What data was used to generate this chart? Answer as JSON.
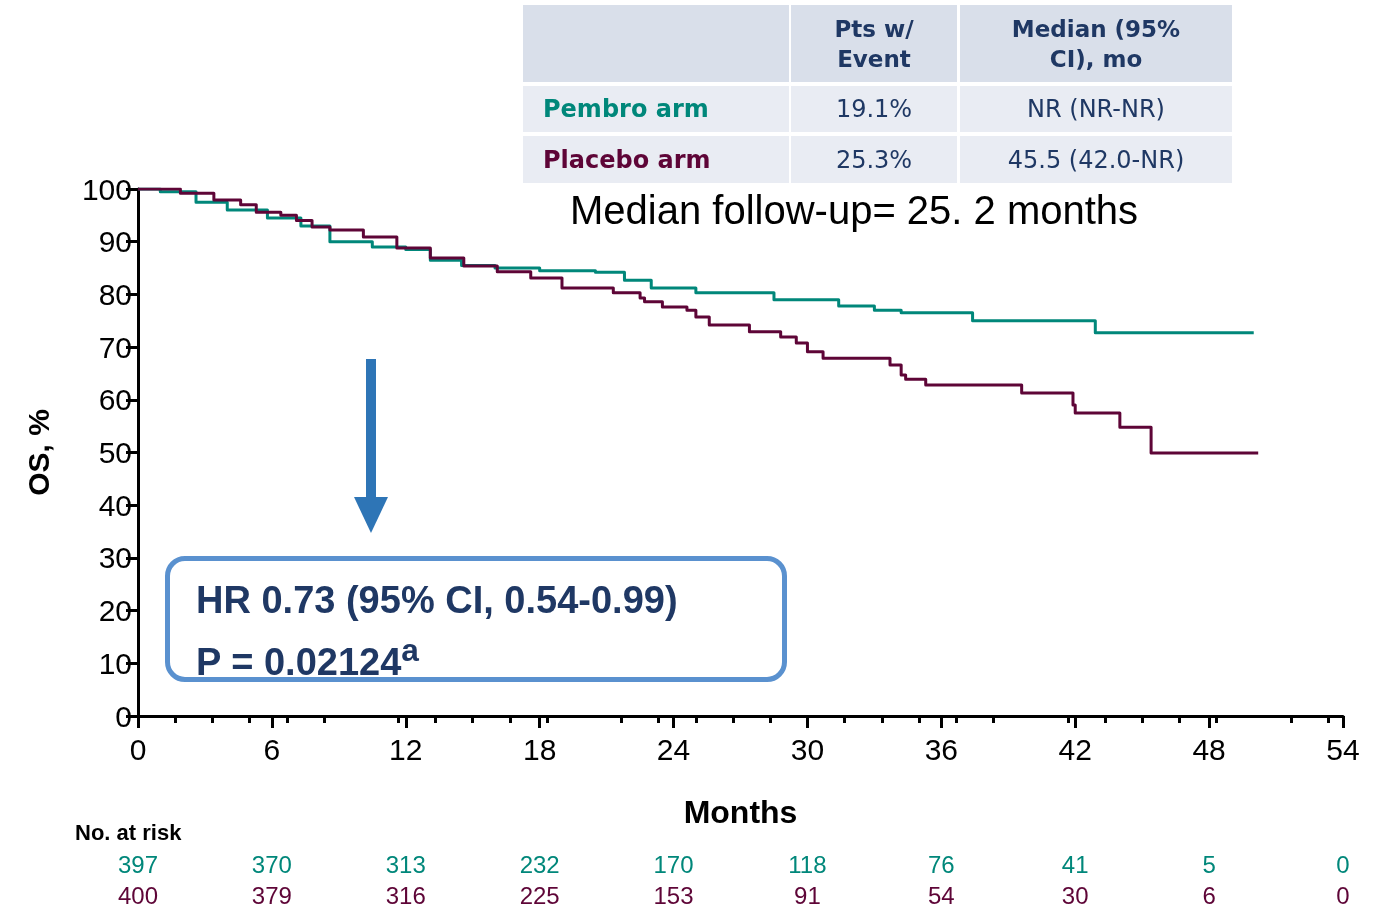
{
  "chart_data": {
    "type": "step",
    "xlabel": "Months",
    "ylabel": "OS, %",
    "xlim": [
      0,
      54
    ],
    "xticks": [
      0,
      6,
      12,
      18,
      24,
      30,
      36,
      42,
      48,
      54
    ],
    "ylim": [
      0,
      100
    ],
    "yticks": [
      0,
      10,
      20,
      30,
      40,
      50,
      60,
      70,
      80,
      90,
      100
    ],
    "legend": false,
    "grid": false,
    "marker": "none",
    "line_style": "solid",
    "series": [
      {
        "name": "Pembro arm",
        "color": "#00877a",
        "x": [
          0,
          1,
          2.6,
          4,
          5.8,
          7.3,
          8.6,
          10.5,
          12,
          13.1,
          14.5,
          16,
          18,
          20.5,
          21.8,
          23,
          25,
          28.5,
          31.4,
          33,
          34.2,
          37.4,
          42.9,
          50
        ],
        "values": [
          100,
          99.5,
          97.5,
          96,
          94.5,
          93,
          90,
          89,
          88.5,
          86.5,
          85.5,
          85,
          84.5,
          84.2,
          82.7,
          81.2,
          80.3,
          79,
          77.8,
          77,
          76.5,
          75,
          72.7,
          72.7
        ]
      },
      {
        "name": "Placebo arm",
        "color": "#5e0537",
        "x": [
          0,
          1.9,
          3.4,
          4.6,
          5.3,
          6.4,
          7.1,
          7.8,
          8.6,
          10.1,
          11.6,
          13.1,
          14.6,
          16.1,
          17.6,
          19,
          21.3,
          22.5,
          22.7,
          23.5,
          24.6,
          25,
          25.6,
          27.4,
          28.8,
          29.5,
          30,
          30.7,
          33.7,
          34.2,
          34.4,
          35.3,
          39.6,
          41.9,
          42,
          44,
          45.4,
          50.2
        ],
        "values": [
          100,
          99.2,
          97.9,
          97,
          95.6,
          95,
          94,
          92.8,
          92.2,
          90.9,
          88.8,
          86.9,
          85.4,
          84.3,
          83.1,
          81.2,
          80.3,
          79.3,
          78.6,
          77.6,
          77,
          75.7,
          74.2,
          72.9,
          71.9,
          70.8,
          69.1,
          67.9,
          66.6,
          64.7,
          63.9,
          62.8,
          61.3,
          59,
          57.5,
          54.8,
          49.9,
          49.9
        ]
      }
    ],
    "annotations": [
      "Pts w/ Event",
      "Median (95% CI), mo",
      "19.1%",
      "NR (NR-NR)",
      "25.3%",
      "45.5 (42.0-NR)",
      "Median follow-up= 25. 2 months",
      "HR 0.73 (95% CI, 0.54-0.99)",
      "P = 0.02124$^{a}$",
      "No. at risk",
      "397",
      "370",
      "313",
      "232",
      "170",
      "118",
      "76",
      "41",
      "5",
      "0",
      "400",
      "379",
      "316",
      "225",
      "153",
      "91",
      "54",
      "30",
      "6",
      "0"
    ]
  }
}
